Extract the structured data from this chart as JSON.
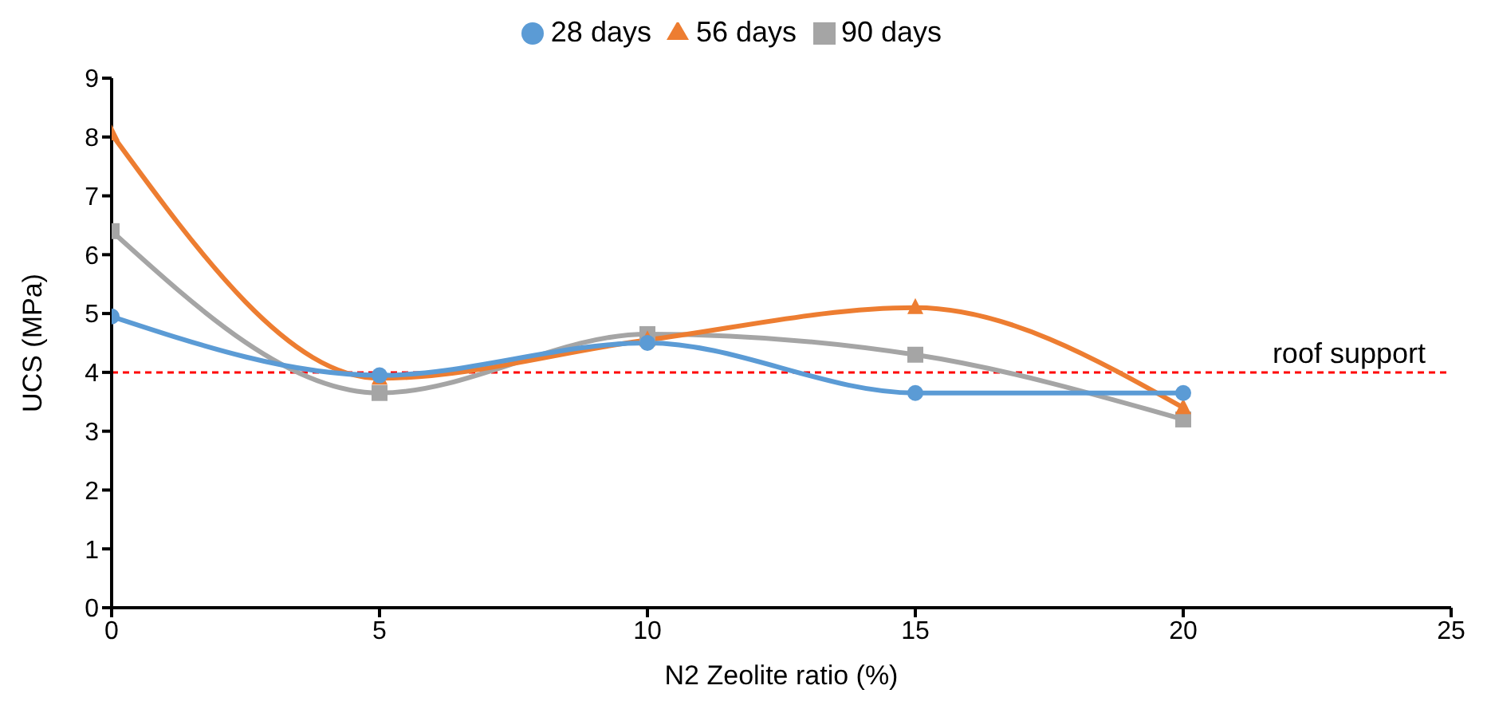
{
  "chart_data": {
    "type": "line",
    "xlabel": "N2 Zeolite ratio (%)",
    "ylabel": "UCS (MPa)",
    "x": [
      0,
      5,
      10,
      15,
      20
    ],
    "series": [
      {
        "name": "28 days",
        "color": "#5b9bd5",
        "marker": "circle",
        "values": [
          4.95,
          3.95,
          4.5,
          3.65,
          3.65
        ]
      },
      {
        "name": "56 days",
        "color": "#ed7d31",
        "marker": "triangle",
        "values": [
          8.05,
          3.9,
          4.55,
          5.1,
          3.4
        ]
      },
      {
        "name": "90 days",
        "color": "#a5a5a5",
        "marker": "square",
        "values": [
          6.4,
          3.65,
          4.65,
          4.3,
          3.2
        ]
      }
    ],
    "xlim": [
      0,
      25
    ],
    "xticks": [
      0,
      5,
      10,
      15,
      20,
      25
    ],
    "ylim": [
      0,
      9
    ],
    "yticks": [
      0,
      1,
      2,
      3,
      4,
      5,
      6,
      7,
      8,
      9
    ],
    "ref_lines": [
      {
        "axis": "y",
        "value": 4,
        "label": "roof support",
        "color": "#ff0000",
        "line_style": "dashed"
      }
    ],
    "legend": "top",
    "grid": false
  }
}
